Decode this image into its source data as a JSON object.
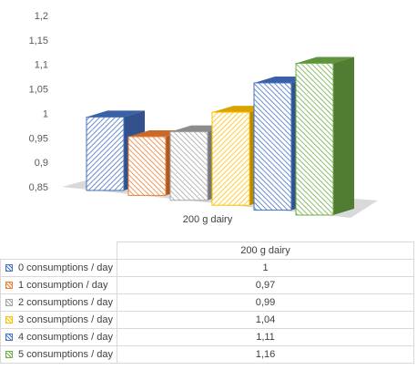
{
  "chart_data": {
    "type": "bar",
    "style": "3d-clustered-column",
    "categories": [
      "200 g dairy"
    ],
    "series": [
      {
        "name": "0 consumptions / day",
        "value": 1,
        "display": "1",
        "color": "#4472c4"
      },
      {
        "name": "1 consumption / day",
        "value": 0.97,
        "display": "0,97",
        "color": "#ed7d31"
      },
      {
        "name": "2 consumptions / day",
        "value": 0.99,
        "display": "0,99",
        "color": "#a5a5a5"
      },
      {
        "name": "3 consumptions / day",
        "value": 1.04,
        "display": "1,04",
        "color": "#ffc000"
      },
      {
        "name": "4 consumptions / day",
        "value": 1.11,
        "display": "1,11",
        "color": "#4472c4"
      },
      {
        "name": "5 consumptions / day",
        "value": 1.16,
        "display": "1,16",
        "color": "#70ad47"
      }
    ],
    "ylim": [
      0.85,
      1.2
    ],
    "yticks": [
      "0,85",
      "0,9",
      "0,95",
      "1",
      "1,05",
      "1,1",
      "1,15",
      "1,2"
    ],
    "grid": false,
    "legend": "data-table",
    "table_header": "200 g dairy"
  }
}
